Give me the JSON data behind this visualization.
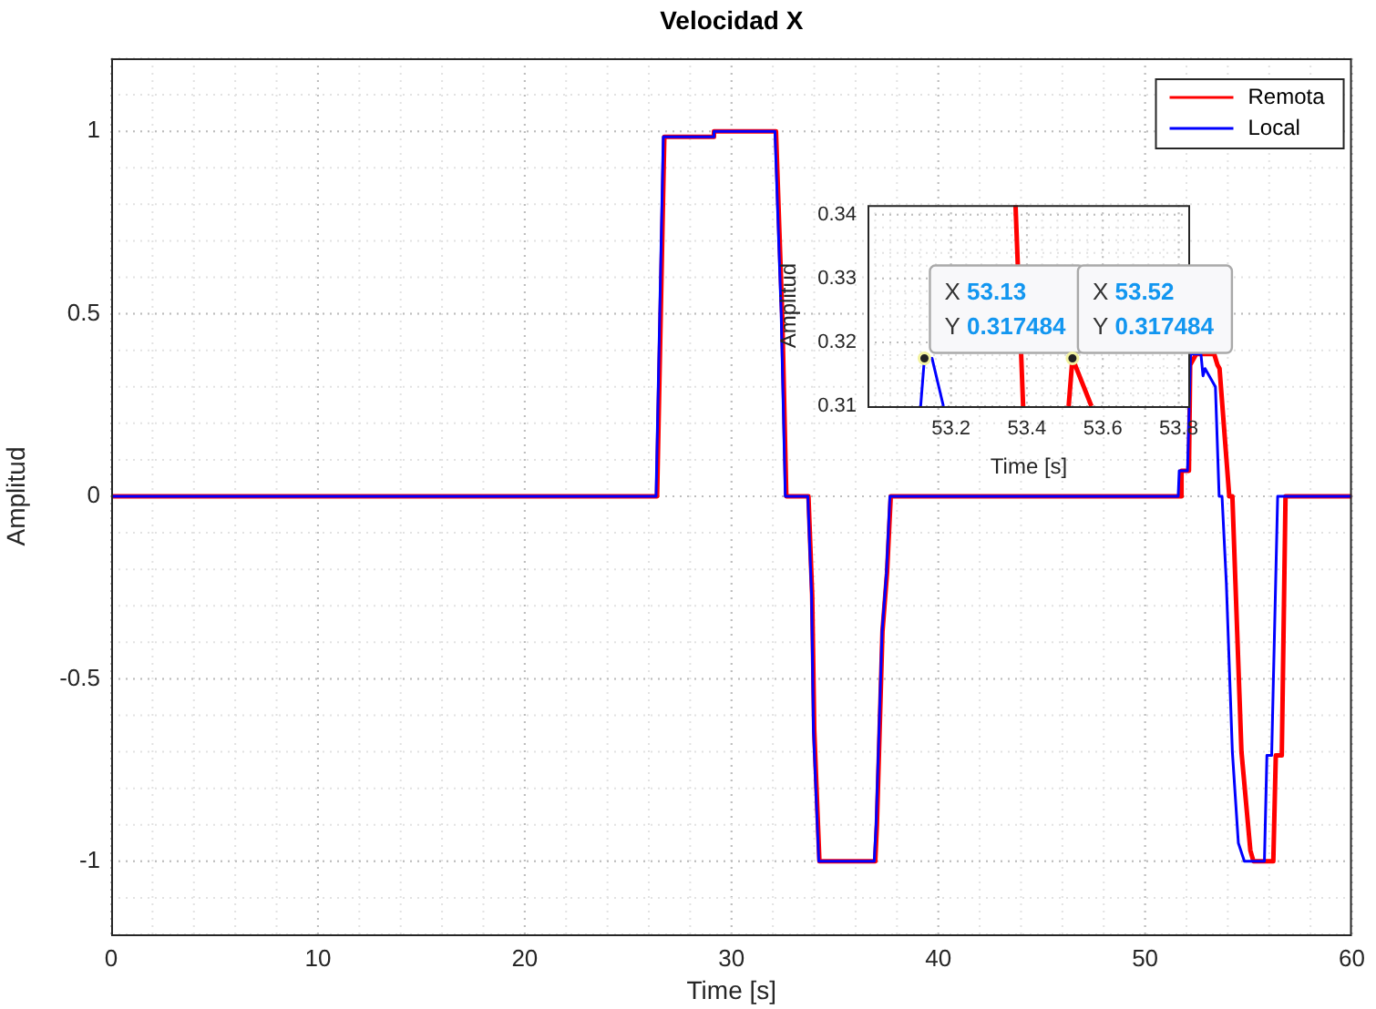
{
  "chart_data": [
    {
      "type": "line",
      "title": "Velocidad X",
      "xlabel": "Time [s]",
      "ylabel": "Amplitud",
      "xlim": [
        0,
        60
      ],
      "xticks": [
        0,
        10,
        20,
        30,
        40,
        50,
        60
      ],
      "ylim": [
        -1.2,
        1.2
      ],
      "yticks": [
        -1,
        -0.5,
        0,
        0.5,
        1
      ],
      "grid": true,
      "legend": "top right",
      "series": [
        {
          "name": "Remota",
          "color": "#ff0000",
          "x": [
            0,
            26.4,
            26.75,
            29.1,
            29.15,
            32.15,
            32.45,
            32.65,
            33.72,
            33.9,
            34.0,
            34.25,
            36.95,
            37.03,
            37.3,
            37.52,
            37.7,
            51.74,
            51.76,
            52.12,
            52.18,
            52.47,
            53.34,
            53.5,
            53.6,
            54.07,
            54.22,
            54.37,
            54.66,
            55.09,
            55.24,
            56.2,
            56.32,
            56.61,
            56.79,
            60
          ],
          "values": [
            0,
            0,
            0.985,
            0.985,
            1,
            1,
            0.5,
            0,
            0,
            -0.27,
            -0.64,
            -1,
            -1,
            -0.9,
            -0.37,
            -0.21,
            0,
            0,
            0.07,
            0.07,
            0.36,
            0.39,
            0.39,
            0.36,
            0.35,
            0,
            0,
            -0.24,
            -0.7,
            -0.97,
            -1,
            -1,
            -0.71,
            -0.71,
            0,
            0
          ]
        },
        {
          "name": "Local",
          "color": "#0000ff",
          "x": [
            0,
            26.35,
            26.7,
            29.1,
            29.15,
            32.1,
            32.4,
            32.6,
            33.69,
            33.87,
            33.96,
            34.22,
            36.9,
            36.99,
            37.28,
            37.49,
            37.66,
            51.6,
            51.65,
            52.05,
            52.2,
            52.7,
            52.8,
            52.9,
            53.4,
            53.58,
            53.72,
            53.93,
            54.22,
            54.51,
            54.8,
            55.77,
            55.89,
            56.12,
            56.41,
            60
          ],
          "values": [
            0,
            0,
            0.985,
            0.985,
            1,
            1,
            0.5,
            0,
            0,
            -0.27,
            -0.64,
            -1,
            -1,
            -0.9,
            -0.37,
            -0.21,
            0,
            0,
            0.07,
            0.07,
            0.39,
            0.39,
            0.33,
            0.35,
            0.3,
            0,
            0,
            -0.24,
            -0.7,
            -0.95,
            -1,
            -1,
            -0.71,
            -0.71,
            0,
            0
          ]
        }
      ]
    },
    {
      "type": "line",
      "xlabel": "Time [s]",
      "ylabel": "Amplitud",
      "xlim": [
        52.98,
        53.83
      ],
      "xticks": [
        53.2,
        53.4,
        53.6,
        53.8
      ],
      "ylim": [
        0.31,
        0.3415
      ],
      "yticks": [
        0.31,
        0.32,
        0.33,
        0.34
      ],
      "grid": true,
      "series": [
        {
          "color": "#ff0000",
          "x": [
            53.37,
            53.39,
            53.45,
            53.51,
            53.52,
            53.57
          ],
          "values": [
            0.3415,
            0.31,
            null,
            0.31,
            0.3175,
            0.31
          ]
        },
        {
          "color": "#0000ff",
          "x": [
            53.12,
            53.13,
            53.15,
            53.18
          ],
          "values": [
            0.31,
            0.3175,
            0.3175,
            0.31
          ]
        }
      ],
      "annotations": [
        {
          "text": "X 53.13\nY 0.317484",
          "x": 53.13,
          "y": 0.317484
        },
        {
          "text": "X 53.52\nY 0.317484",
          "x": 53.52,
          "y": 0.317484
        }
      ]
    }
  ]
}
